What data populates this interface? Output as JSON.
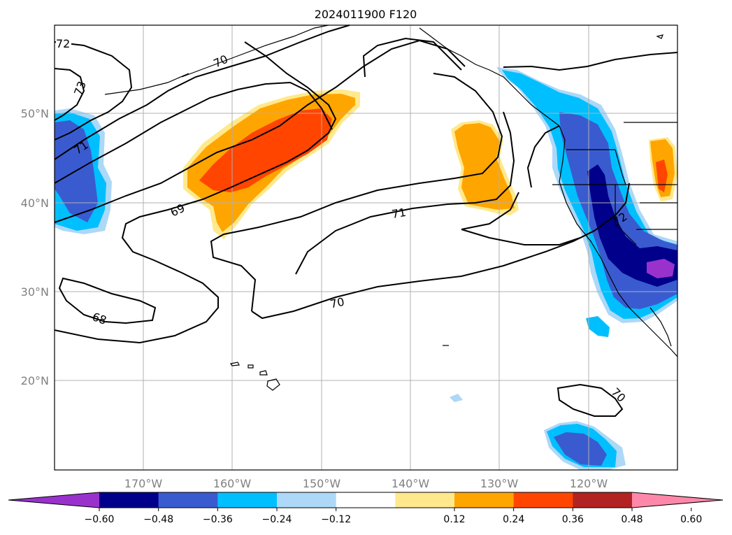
{
  "title": "2024011900 F120",
  "lon_labels": [
    "170°W",
    "160°W",
    "150°W",
    "140°W",
    "130°W",
    "120°W"
  ],
  "lat_labels": [
    "50°N",
    "40°N",
    "30°N",
    "20°N"
  ],
  "colorbar": {
    "ticks": [
      "−0.60",
      "−0.48",
      "−0.36",
      "−0.24",
      "−0.12",
      "0.12",
      "0.24",
      "0.36",
      "0.48",
      "0.60"
    ],
    "colors": [
      "#9932cc",
      "#00008b",
      "#3a5bd0",
      "#00bfff",
      "#add8f7",
      "#ffffff",
      "#ffe98c",
      "#ffa500",
      "#ff4500",
      "#b22222",
      "#ff88aa"
    ]
  },
  "contour_labels": [
    "72",
    "73",
    "70",
    "71",
    "69",
    "71",
    "70",
    "68",
    "72",
    "70"
  ]
}
